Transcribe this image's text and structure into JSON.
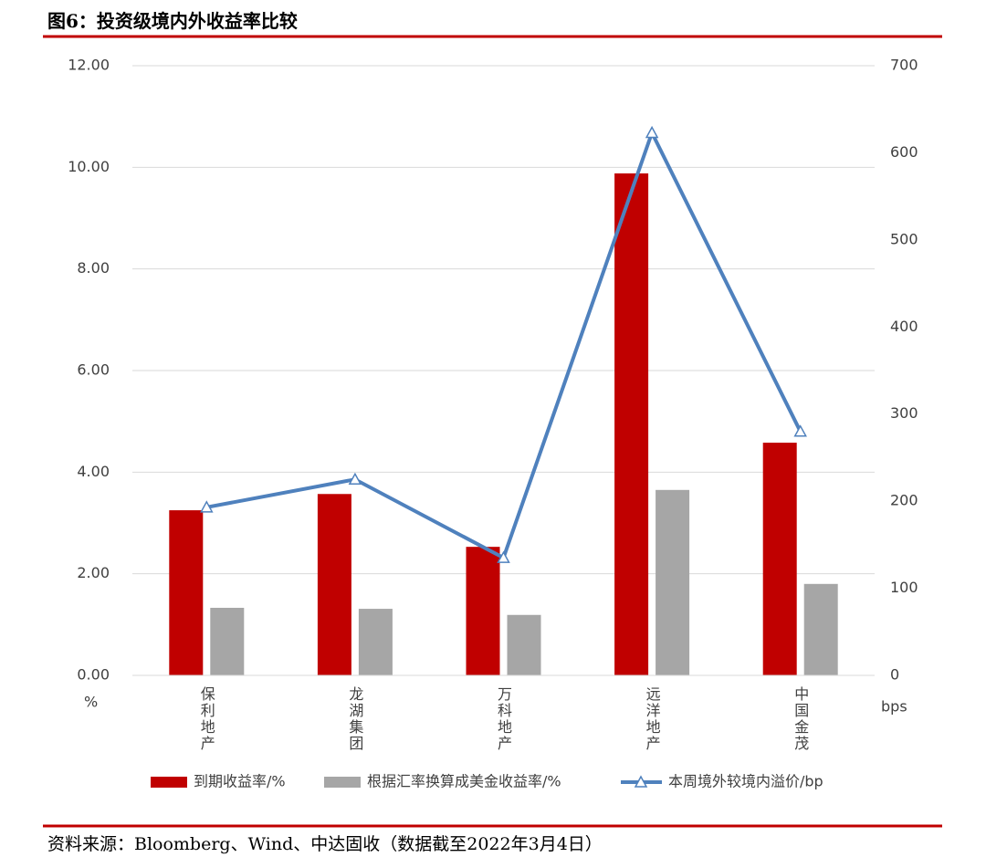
{
  "chart_data": {
    "type": "bar",
    "title": "图6：投资级境内外收益率比较",
    "categories": [
      "保利地产",
      "龙湖集团",
      "万科地产",
      "远洋地产",
      "中国金茂"
    ],
    "series": [
      {
        "name": "到期收益率/%",
        "color": "#c00000",
        "type": "bar",
        "values": [
          3.25,
          3.57,
          2.53,
          9.88,
          4.58
        ]
      },
      {
        "name": "根据汇率换算成美金收益率/%",
        "color": "#a6a6a6",
        "type": "bar",
        "values": [
          1.33,
          1.31,
          1.19,
          3.65,
          1.8
        ]
      },
      {
        "name": "本周境外较境内溢价/bp",
        "color": "#4f81bd",
        "type": "line",
        "axis": "y2",
        "values": [
          193,
          225,
          135,
          623,
          280
        ]
      }
    ],
    "ylim": [
      0,
      12
    ],
    "yticks": [
      {
        "value": 0,
        "label": "0.00"
      },
      {
        "value": 2,
        "label": "2.00"
      },
      {
        "value": 4,
        "label": "4.00"
      },
      {
        "value": 6,
        "label": "6.00"
      },
      {
        "value": 8,
        "label": "8.00"
      },
      {
        "value": 10,
        "label": "10.00"
      },
      {
        "value": 12,
        "label": "12.00"
      }
    ],
    "y2lim": [
      0,
      700
    ],
    "y2ticks": [
      0,
      100,
      200,
      300,
      400,
      500,
      600,
      700
    ],
    "ylabel": "%",
    "y2label": "bps",
    "grid": true,
    "source": "资料来源：Bloomberg、Wind、中达固收（数据截至2022年3月4日）"
  }
}
